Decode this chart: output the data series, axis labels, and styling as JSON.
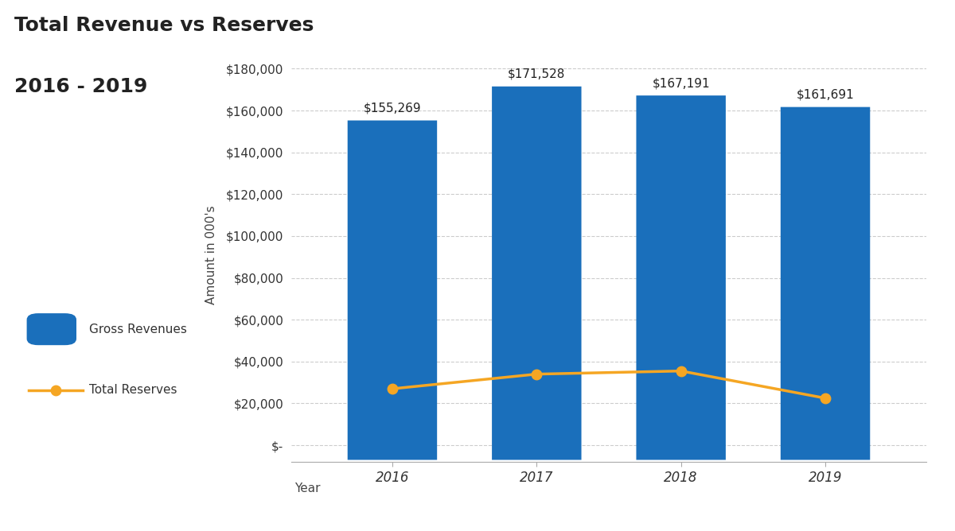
{
  "title_line1": "Total Revenue vs Reserves",
  "title_line2": "2016 - 2019",
  "years": [
    2016,
    2017,
    2018,
    2019
  ],
  "gross_revenues": [
    155269,
    171528,
    167191,
    161691
  ],
  "total_reserves": [
    27000,
    34000,
    35500,
    22500
  ],
  "bar_color": "#1a6fbb",
  "line_color": "#f5a623",
  "bar_labels": [
    "$155,269",
    "$171,528",
    "$167,191",
    "$161,691"
  ],
  "ylabel": "Amount in 000's",
  "xlabel": "Year",
  "ylim_max": 190000,
  "ylim_min": -8000,
  "yticks": [
    0,
    20000,
    40000,
    60000,
    80000,
    100000,
    120000,
    140000,
    160000,
    180000
  ],
  "ytick_labels": [
    "$-",
    "$20,000",
    "$40,000",
    "$60,000",
    "$80,000",
    "$100,000",
    "$120,000",
    "$140,000",
    "$160,000",
    "$180,000"
  ],
  "background_color": "#ffffff",
  "title_fontsize": 18,
  "label_fontsize": 11,
  "tick_fontsize": 11,
  "bar_width": 0.62,
  "legend_bar_label": "Gross Revenues",
  "legend_line_label": "Total Reserves"
}
